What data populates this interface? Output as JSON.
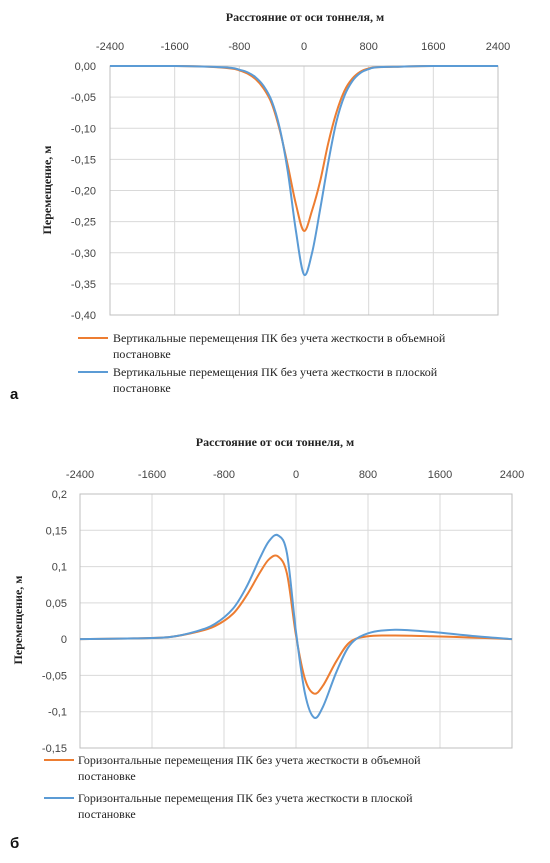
{
  "chart_data": [
    {
      "type": "line",
      "title": "Расстояние от оси тоннеля, м",
      "ylabel": "Перемещение, м",
      "panel_label": "а",
      "xlim": [
        -2400,
        2400
      ],
      "ylim": [
        -0.4,
        0.0
      ],
      "xticks": [
        "-2400",
        "-1600",
        "-800",
        "0",
        "800",
        "1600",
        "2400"
      ],
      "yticks": [
        "0,00",
        "-0,05",
        "-0,10",
        "-0,15",
        "-0,20",
        "-0,25",
        "-0,30",
        "-0,35",
        "-0,40"
      ],
      "grid": true,
      "legend_position": "bottom",
      "colors": {
        "series1": "#ED7D31",
        "series2": "#5B9BD5"
      },
      "x": [
        -2400,
        -1600,
        -1200,
        -900,
        -800,
        -700,
        -600,
        -500,
        -400,
        -300,
        -200,
        -100,
        0,
        100,
        200,
        300,
        400,
        500,
        600,
        700,
        800,
        900,
        1200,
        1600,
        2400
      ],
      "series": [
        {
          "name": "Вертикальные перемещения ПК без учета жесткости в объемной постановке",
          "values": [
            0,
            0,
            -0.001,
            -0.004,
            -0.007,
            -0.012,
            -0.021,
            -0.036,
            -0.06,
            -0.103,
            -0.16,
            -0.222,
            -0.265,
            -0.232,
            -0.185,
            -0.124,
            -0.075,
            -0.04,
            -0.02,
            -0.009,
            -0.004,
            -0.002,
            -0.001,
            0,
            0
          ]
        },
        {
          "name": "Вертикальные перемещения ПК без учета жесткости в плоской постановке",
          "values": [
            0,
            0,
            -0.001,
            -0.003,
            -0.006,
            -0.01,
            -0.018,
            -0.032,
            -0.056,
            -0.1,
            -0.17,
            -0.265,
            -0.335,
            -0.3,
            -0.23,
            -0.155,
            -0.09,
            -0.048,
            -0.024,
            -0.011,
            -0.005,
            -0.002,
            -0.001,
            0,
            0
          ]
        }
      ]
    },
    {
      "type": "line",
      "title": "Расстояние от оси тоннеля, м",
      "ylabel": "Перемещение, м",
      "panel_label": "б",
      "xlim": [
        -2400,
        2400
      ],
      "ylim": [
        -0.15,
        0.2
      ],
      "xticks": [
        "-2400",
        "-1600",
        "-800",
        "0",
        "800",
        "1600",
        "2400"
      ],
      "yticks": [
        "0,2",
        "0,15",
        "0,1",
        "0,05",
        "0",
        "-0,05",
        "-0,1",
        "-0,15"
      ],
      "grid": true,
      "legend_position": "bottom",
      "colors": {
        "series1": "#ED7D31",
        "series2": "#5B9BD5"
      },
      "x": [
        -2400,
        -1800,
        -1400,
        -1100,
        -900,
        -700,
        -550,
        -400,
        -300,
        -200,
        -100,
        0,
        100,
        200,
        300,
        450,
        600,
        800,
        1100,
        1500,
        2000,
        2400
      ],
      "series": [
        {
          "name": "Горизонтальные перемещения ПК без учета жесткости в объемной постановке",
          "values": [
            0,
            0.001,
            0.003,
            0.01,
            0.018,
            0.035,
            0.06,
            0.092,
            0.11,
            0.114,
            0.09,
            0.005,
            -0.055,
            -0.075,
            -0.064,
            -0.03,
            -0.004,
            0.004,
            0.005,
            0.004,
            0.002,
            0
          ]
        },
        {
          "name": "Горизонтальные перемещения ПК без учета жесткости в плоской постановке",
          "values": [
            0,
            0.001,
            0.003,
            0.011,
            0.021,
            0.042,
            0.072,
            0.112,
            0.135,
            0.143,
            0.118,
            0.01,
            -0.075,
            -0.108,
            -0.093,
            -0.045,
            -0.008,
            0.008,
            0.013,
            0.01,
            0.004,
            0
          ]
        }
      ]
    }
  ]
}
